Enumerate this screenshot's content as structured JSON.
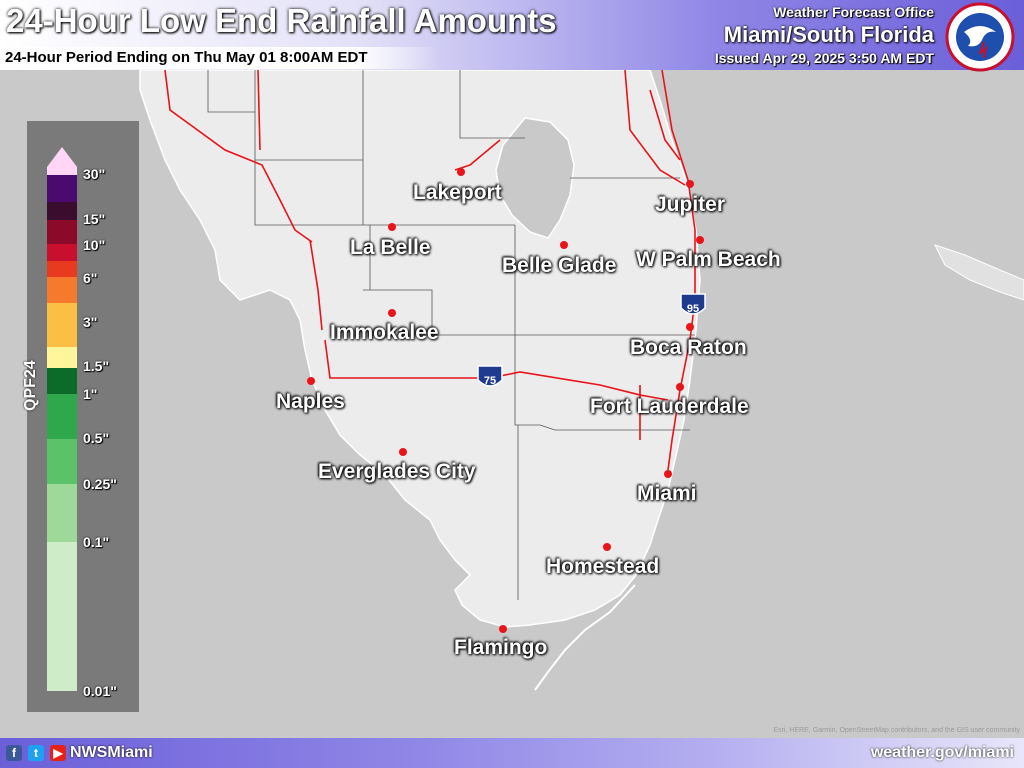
{
  "header": {
    "title": "24-Hour Low End Rainfall Amounts",
    "subtitle": "24-Hour Period Ending on Thu May 01 8:00AM EDT",
    "office": "Weather Forecast Office",
    "region": "Miami/South Florida",
    "issued": "Issued Apr 29, 2025 3:50 AM EDT",
    "logo_icon": "nws-logo-icon"
  },
  "map": {
    "land_color": "#ececec",
    "water_color": "#c9c9c9",
    "lake_color": "#c9c9c9",
    "highway_color": "#e8141a",
    "city_dot_color": "#e8141a",
    "interstates": [
      "75",
      "95"
    ],
    "cities": [
      {
        "name": "Lakeport"
      },
      {
        "name": "La Belle"
      },
      {
        "name": "Belle Glade"
      },
      {
        "name": "Jupiter"
      },
      {
        "name": "W Palm Beach"
      },
      {
        "name": "Immokalee"
      },
      {
        "name": "Boca Raton"
      },
      {
        "name": "Naples"
      },
      {
        "name": "Fort Lauderdale"
      },
      {
        "name": "Everglades City"
      },
      {
        "name": "Miami"
      },
      {
        "name": "Homestead"
      },
      {
        "name": "Flamingo"
      }
    ],
    "attribution": "Esri, HERE, Garmin, OpenStreetMap contributors, and the GIS user community"
  },
  "legend": {
    "caption": "QPF24",
    "ticks": [
      "30\"",
      "15\"",
      "10\"",
      "6\"",
      "3\"",
      "1.5\"",
      "1\"",
      "0.5\"",
      "0.25\"",
      "0.1\"",
      "0.01\""
    ],
    "colors": [
      "#ffd6f5",
      "#4b0a6e",
      "#3a0d2e",
      "#8b0a2a",
      "#c8102e",
      "#e83a1e",
      "#f57a2e",
      "#fbbf45",
      "#fff59a",
      "#0d6b2a",
      "#2ea84a",
      "#5cc26a",
      "#9ed99a",
      "#cfecc9"
    ]
  },
  "footer": {
    "handle": "NWSMiami",
    "website": "weather.gov/miami",
    "social_icons": [
      "facebook-icon",
      "twitter-icon",
      "youtube-icon"
    ]
  }
}
